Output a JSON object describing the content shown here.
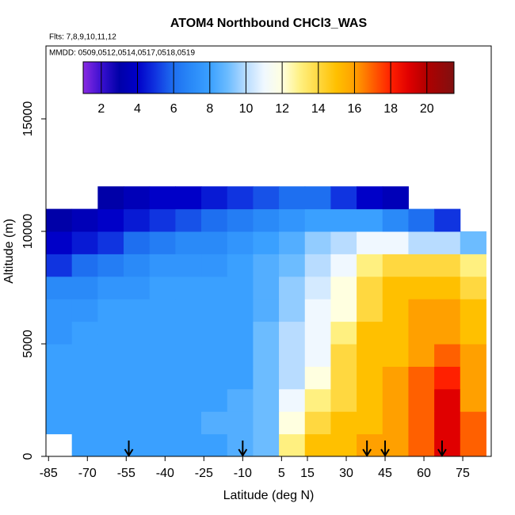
{
  "chart_data": {
    "type": "heatmap",
    "title": "ATOM4 Northbound CHCl3_WAS",
    "annotations": [
      "Flts: 7,8,9,10,11,12",
      "MMDD: 0509,0512,0514,0517,0518,0519"
    ],
    "xlabel": "Latitude (deg N)",
    "ylabel": "Altitude (m)",
    "xlim": [
      -86,
      86
    ],
    "ylim": [
      0,
      18240
    ],
    "xticks": [
      -85,
      -70,
      -55,
      -40,
      -25,
      -10,
      5,
      15,
      30,
      45,
      60,
      75
    ],
    "yticks": [
      0,
      5000,
      10000,
      15000
    ],
    "x_edges": [
      -86,
      -76,
      -66,
      -56,
      -46,
      -36,
      -26,
      -16,
      -6,
      4,
      14,
      24,
      34,
      44,
      54,
      64,
      74,
      84
    ],
    "y_edges": [
      0,
      1000,
      2000,
      3000,
      4000,
      5000,
      6000,
      7000,
      8000,
      9000,
      10000,
      11000,
      12000
    ],
    "z": [
      [
        null,
        8,
        8,
        8,
        8,
        8,
        8,
        8.5,
        9,
        13,
        15,
        15,
        16,
        16,
        17,
        19,
        17
      ],
      [
        8,
        8,
        8,
        8,
        8,
        8,
        8.5,
        8.5,
        9,
        12,
        14,
        15,
        15,
        16,
        17,
        19,
        17
      ],
      [
        8,
        8,
        8,
        8,
        8,
        8,
        8,
        8.5,
        9,
        11,
        13,
        14,
        15,
        16,
        17,
        19,
        16
      ],
      [
        8,
        8,
        8,
        8,
        8,
        8,
        8,
        8,
        9,
        10,
        12,
        14,
        15,
        16,
        17,
        18,
        16
      ],
      [
        8,
        8,
        8,
        8,
        8,
        8,
        8,
        8,
        9,
        10,
        11,
        14,
        15,
        15,
        16,
        17,
        16
      ],
      [
        7.5,
        8,
        8,
        8,
        8,
        8,
        8,
        8,
        9,
        10,
        11,
        13,
        15,
        15,
        16,
        16,
        15
      ],
      [
        7.5,
        7.5,
        8,
        8,
        8,
        8,
        8,
        8,
        8.5,
        9.5,
        11,
        12,
        14,
        15,
        16,
        16,
        15
      ],
      [
        7,
        7,
        7.5,
        7.5,
        8,
        8,
        8,
        8,
        8.5,
        9.5,
        10.5,
        12,
        14,
        15,
        15,
        15,
        14
      ],
      [
        5,
        6,
        6.5,
        7,
        7.5,
        7.5,
        7.5,
        8,
        8.5,
        9,
        10,
        11,
        13,
        14,
        14,
        14,
        13
      ],
      [
        4,
        4.5,
        5,
        6,
        6.5,
        7,
        7,
        7.5,
        8,
        8.5,
        9.5,
        10,
        11,
        11,
        10,
        10,
        9
      ],
      [
        3,
        3.5,
        4,
        4.5,
        5,
        5.5,
        6,
        6.5,
        7,
        7.5,
        8,
        8,
        8,
        7,
        6,
        5,
        null
      ],
      [
        null,
        null,
        3,
        3.5,
        4,
        4,
        4.5,
        5,
        5.5,
        6,
        6,
        5,
        4,
        3.5,
        null,
        null,
        null
      ]
    ],
    "arrows": [
      -54,
      -10,
      38,
      45,
      67
    ],
    "colorbar": {
      "lim": [
        1,
        21.5
      ],
      "ticks": [
        2,
        4,
        6,
        8,
        10,
        12,
        14,
        16,
        18,
        20
      ]
    },
    "colorscale": [
      [
        1,
        "#8a2be2"
      ],
      [
        2,
        "#3a10d0"
      ],
      [
        3,
        "#0000a8"
      ],
      [
        4,
        "#0000c8"
      ],
      [
        5,
        "#1034e0"
      ],
      [
        6,
        "#1e6ff0"
      ],
      [
        7,
        "#2a8af8"
      ],
      [
        8,
        "#3aa0ff"
      ],
      [
        9,
        "#6cbcff"
      ],
      [
        10,
        "#b8dcff"
      ],
      [
        11,
        "#f0f8ff"
      ],
      [
        12,
        "#ffffe0"
      ],
      [
        13,
        "#fff080"
      ],
      [
        14,
        "#ffd840"
      ],
      [
        15,
        "#ffc000"
      ],
      [
        16,
        "#ffa000"
      ],
      [
        17,
        "#ff6000"
      ],
      [
        18,
        "#ff2000"
      ],
      [
        19,
        "#e00000"
      ],
      [
        20,
        "#b00000"
      ],
      [
        21.5,
        "#801010"
      ]
    ]
  }
}
